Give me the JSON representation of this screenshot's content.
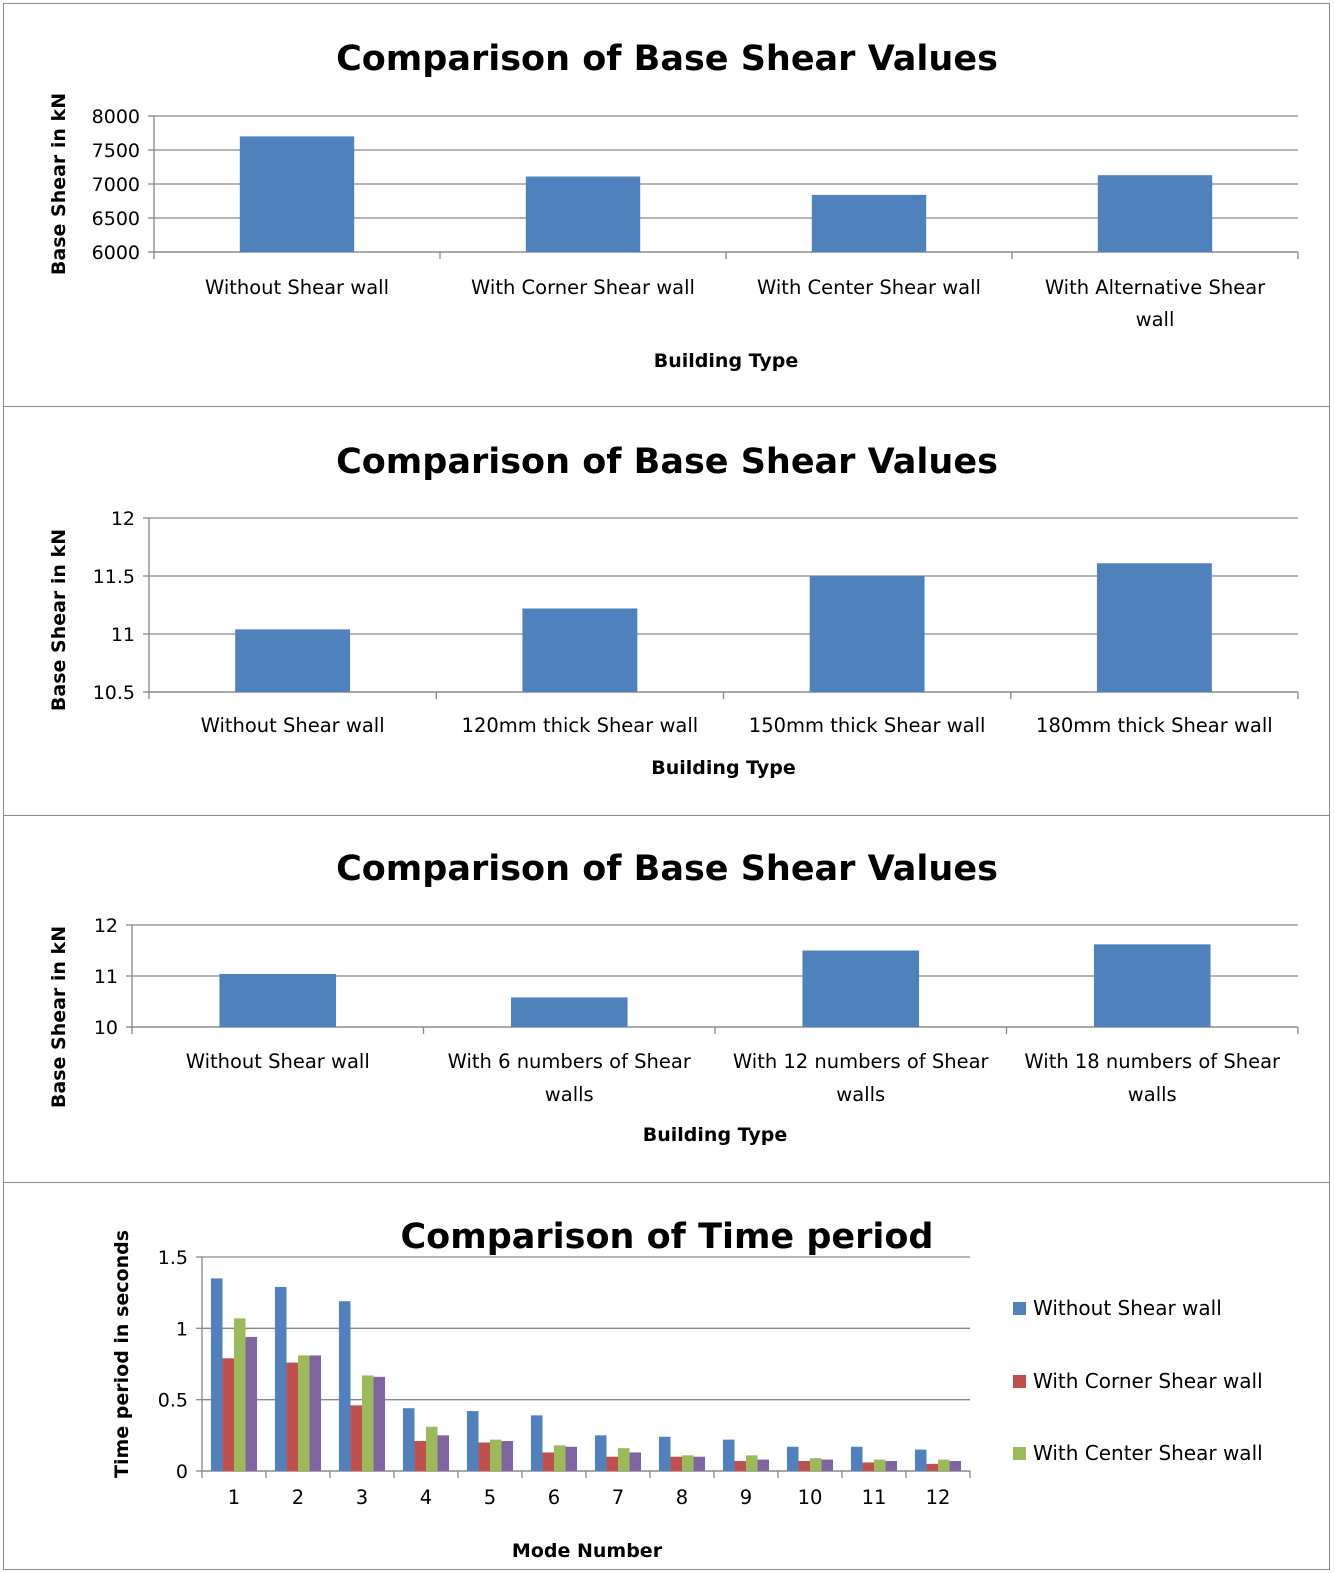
{
  "colors": {
    "bar": "#4F81BD",
    "grid": "#868686",
    "series": [
      "#4F81BD",
      "#C0504D",
      "#9BBB59",
      "#8064A2"
    ]
  },
  "chart_data": [
    {
      "type": "bar",
      "title": "Comparison of Base Shear Values",
      "xlabel": "Building Type",
      "ylabel": "Base Shear in kN",
      "categories": [
        "Without Shear wall",
        "With Corner Shear wall",
        "With Center Shear wall",
        "With Alternative Shear wall"
      ],
      "category_lines": [
        [
          "Without Shear wall"
        ],
        [
          "With Corner Shear wall"
        ],
        [
          "With Center Shear wall"
        ],
        [
          "With Alternative Shear",
          "wall"
        ]
      ],
      "values": [
        7700,
        7110,
        6840,
        7130
      ],
      "ylim": [
        6000,
        8000
      ],
      "yticks": [
        6000,
        6500,
        7000,
        7500,
        8000
      ],
      "grid": true
    },
    {
      "type": "bar",
      "title": "Comparison of Base Shear Values",
      "xlabel": "Building Type",
      "ylabel": "Base Shear in kN",
      "categories": [
        "Without Shear wall",
        "120mm thick Shear wall",
        "150mm thick Shear wall",
        "180mm thick Shear wall"
      ],
      "category_lines": [
        [
          "Without Shear wall"
        ],
        [
          "120mm thick Shear wall"
        ],
        [
          "150mm thick Shear wall"
        ],
        [
          "180mm thick Shear wall"
        ]
      ],
      "values": [
        11.04,
        11.22,
        11.5,
        11.61
      ],
      "ylim": [
        10.5,
        12
      ],
      "yticks": [
        "10.5",
        "11",
        "11.5",
        "12"
      ],
      "grid": true
    },
    {
      "type": "bar",
      "title": "Comparison of Base Shear Values",
      "xlabel": "Building Type",
      "ylabel": "Base Shear in kN",
      "categories": [
        "Without Shear wall",
        "With 6 numbers of Shear walls",
        "With 12 numbers of Shear walls",
        "With 18 numbers of Shear walls"
      ],
      "category_lines": [
        [
          "Without Shear wall"
        ],
        [
          "With 6 numbers of Shear",
          "walls"
        ],
        [
          "With 12 numbers of Shear",
          "walls"
        ],
        [
          "With 18 numbers of Shear",
          "walls"
        ]
      ],
      "values": [
        11.04,
        10.58,
        11.5,
        11.62
      ],
      "ylim": [
        10,
        12
      ],
      "yticks": [
        10,
        11,
        12
      ],
      "grid": true
    },
    {
      "type": "bar",
      "title": "Comparison of Time period",
      "xlabel": "Mode Number",
      "ylabel": "Time period in seconds",
      "categories": [
        "1",
        "2",
        "3",
        "4",
        "5",
        "6",
        "7",
        "8",
        "9",
        "10",
        "11",
        "12"
      ],
      "series": [
        {
          "name": "Without Shear wall",
          "values": [
            1.35,
            1.29,
            1.19,
            0.44,
            0.42,
            0.39,
            0.25,
            0.24,
            0.22,
            0.17,
            0.17,
            0.15
          ]
        },
        {
          "name": "With Corner Shear wall",
          "values": [
            0.79,
            0.76,
            0.46,
            0.21,
            0.2,
            0.13,
            0.1,
            0.1,
            0.07,
            0.07,
            0.06,
            0.05
          ]
        },
        {
          "name": "With Center Shear wall",
          "values": [
            1.07,
            0.81,
            0.67,
            0.31,
            0.22,
            0.18,
            0.16,
            0.11,
            0.11,
            0.09,
            0.08,
            0.08
          ]
        },
        {
          "values": [
            0.94,
            0.81,
            0.66,
            0.25,
            0.21,
            0.17,
            0.13,
            0.1,
            0.08,
            0.08,
            0.07,
            0.07
          ]
        }
      ],
      "ylim": [
        0,
        1.5
      ],
      "yticks": [
        "0",
        "0.5",
        "1",
        "1.5"
      ],
      "legend": "right",
      "grid": true
    }
  ]
}
